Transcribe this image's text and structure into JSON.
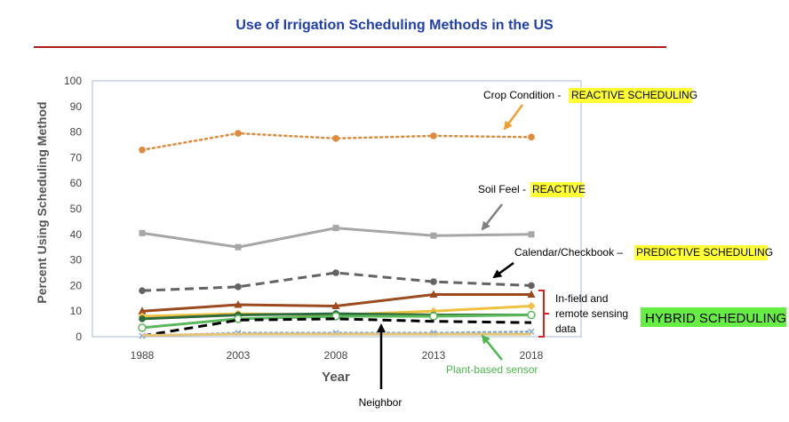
{
  "slide": {
    "title": "Use of Irrigation Scheduling Methods in the US"
  },
  "chart_data": {
    "type": "line",
    "title": "",
    "xlabel": "Year",
    "ylabel": "Percent Using Scheduling Method",
    "categories": [
      "1988",
      "2003",
      "2008",
      "2013",
      "2018"
    ],
    "ylim": [
      0,
      100
    ],
    "yticks": [
      0,
      10,
      20,
      30,
      40,
      50,
      60,
      70,
      80,
      90,
      100
    ],
    "grid": false,
    "legend": "none",
    "series": [
      {
        "values": [
          73,
          79.5,
          77.5,
          78.5,
          78
        ],
        "color": "#e08a3c",
        "dash": "dotted",
        "marker": "circle"
      },
      {
        "values": [
          40.5,
          35,
          42.5,
          39.5,
          40
        ],
        "color": "#a6a6a6",
        "dash": "solid",
        "marker": "square"
      },
      {
        "values": [
          18,
          19.5,
          25,
          21.5,
          20
        ],
        "color": "#636363",
        "dash": "dashed",
        "marker": "circle"
      },
      {
        "values": [
          10,
          12.5,
          12,
          16.5,
          16.5
        ],
        "color": "#9c4a1e",
        "dash": "solid",
        "marker": "triangle"
      },
      {
        "values": [
          8,
          9,
          8.5,
          10,
          12
        ],
        "color": "#f0c040",
        "dash": "solid",
        "marker": "diamond"
      },
      {
        "values": [
          7,
          8.5,
          9,
          8.5,
          8.5
        ],
        "color": "#2e6b3a",
        "dash": "solid",
        "marker": "circle"
      },
      {
        "values": [
          3.5,
          7,
          8,
          8,
          8.5
        ],
        "color": "#5bb85b",
        "dash": "solid",
        "marker": "open-circle"
      },
      {
        "values": [
          0.3,
          6.5,
          7,
          6,
          5.5
        ],
        "color": "#000000",
        "dash": "dashed",
        "marker": "none"
      },
      {
        "values": [
          0.3,
          1.5,
          1.5,
          1.5,
          2
        ],
        "color": "#7fa7d9",
        "dash": "dotted",
        "marker": "x"
      },
      {
        "values": [
          0.5,
          1,
          1,
          1,
          1
        ],
        "color": "#e3c478",
        "dash": "solid",
        "marker": "none"
      }
    ],
    "annotations": {
      "crop": {
        "prefix": "Crop Condition - ",
        "highlight": "REACTIVE SCHEDULING"
      },
      "soil": {
        "prefix": "Soil Feel - ",
        "highlight": "REACTIVE"
      },
      "calendar": {
        "prefix": "Calendar/Checkbook – ",
        "highlight": "PREDICTIVE SCHEDULING"
      },
      "infield": [
        "In-field and",
        "remote sensing",
        "data"
      ],
      "hybrid": "HYBRID SCHEDULING",
      "plant": "Plant-based sensor",
      "neighbor": "Neighbor"
    }
  }
}
